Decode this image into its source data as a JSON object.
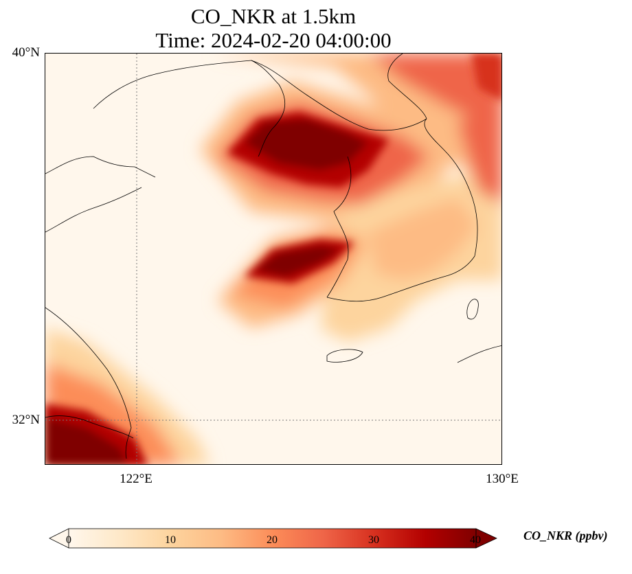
{
  "title": {
    "line1": "CO_NKR at 1.5km",
    "line2": "Time: 2024-02-20 04:00:00"
  },
  "axes": {
    "lat_labels": [
      "40°N",
      "32°N"
    ],
    "lon_labels": [
      "122°E",
      "130°E"
    ],
    "lon_range": [
      120,
      130
    ],
    "lat_range": [
      31,
      40
    ],
    "gridlines": "dotted"
  },
  "colorbar": {
    "title": "CO_NKR (ppbv)",
    "ticks": [
      "0",
      "10",
      "20",
      "30",
      "40"
    ],
    "range": [
      0,
      40
    ],
    "colormap": "OrRd",
    "extend": "both",
    "colors": [
      "#fff7ec",
      "#fee8c8",
      "#fdd49e",
      "#fdbb84",
      "#fc8d59",
      "#ef6548",
      "#d7301f",
      "#b30000",
      "#7f0000"
    ]
  }
}
